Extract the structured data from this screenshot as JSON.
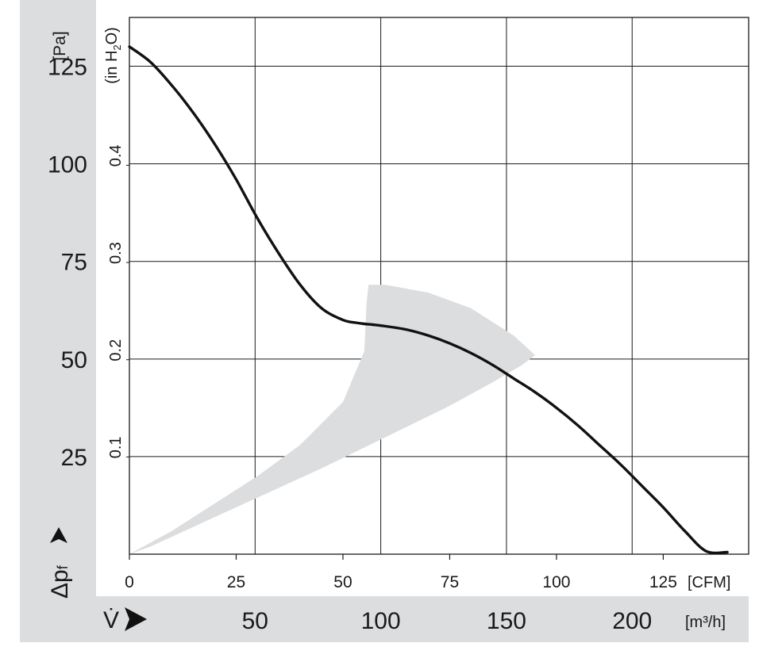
{
  "chart_data": {
    "type": "line",
    "title": "",
    "left_axis": {
      "unit": "[Pa]",
      "ticks": [
        "25",
        "50",
        "75",
        "100",
        "125"
      ],
      "ylim": [
        0,
        137.5
      ],
      "symbol": "Δp",
      "subscript": "f"
    },
    "inner_axis": {
      "unit": "(in H",
      "unit_sub": "2",
      "unit_end": "O)",
      "ticks": [
        "0.1",
        "0.2",
        "0.3",
        "0.4"
      ]
    },
    "x_axis_cfm": {
      "unit": "[CFM]",
      "ticks": [
        "0",
        "25",
        "50",
        "75",
        "100",
        "125"
      ],
      "xlim": [
        0,
        145
      ]
    },
    "x_axis_m3h": {
      "symbol": "V̇",
      "unit": "[m³/h]",
      "ticks": [
        "50",
        "100",
        "150",
        "200"
      ]
    },
    "series": [
      {
        "x": [
          0,
          5,
          10,
          15,
          20,
          25,
          30,
          35,
          40,
          45,
          50,
          53,
          55,
          57,
          60,
          65,
          70,
          75,
          80,
          85,
          90,
          95,
          100,
          105,
          110,
          115,
          120,
          125,
          130,
          135,
          140
        ],
        "y": [
          130,
          126,
          120,
          113,
          105,
          96,
          86,
          77,
          69,
          63,
          60,
          59.3,
          59,
          58.8,
          58.4,
          57.5,
          56,
          54,
          51.5,
          48.5,
          45,
          41.5,
          37.5,
          33,
          28,
          23,
          17.5,
          12,
          6,
          0.8,
          0.5
        ]
      }
    ],
    "operating_region": {
      "x": [
        0,
        10,
        20,
        30,
        40,
        50,
        55,
        55.5,
        56,
        60,
        70,
        80,
        90,
        95,
        92,
        85,
        75,
        60,
        45,
        30,
        15,
        5,
        0
      ],
      "y": [
        0,
        6,
        13,
        20,
        28,
        39,
        52,
        64,
        69,
        69,
        67,
        63,
        56,
        51,
        48.5,
        44,
        38,
        30,
        22,
        14.5,
        7,
        2,
        0
      ]
    }
  }
}
